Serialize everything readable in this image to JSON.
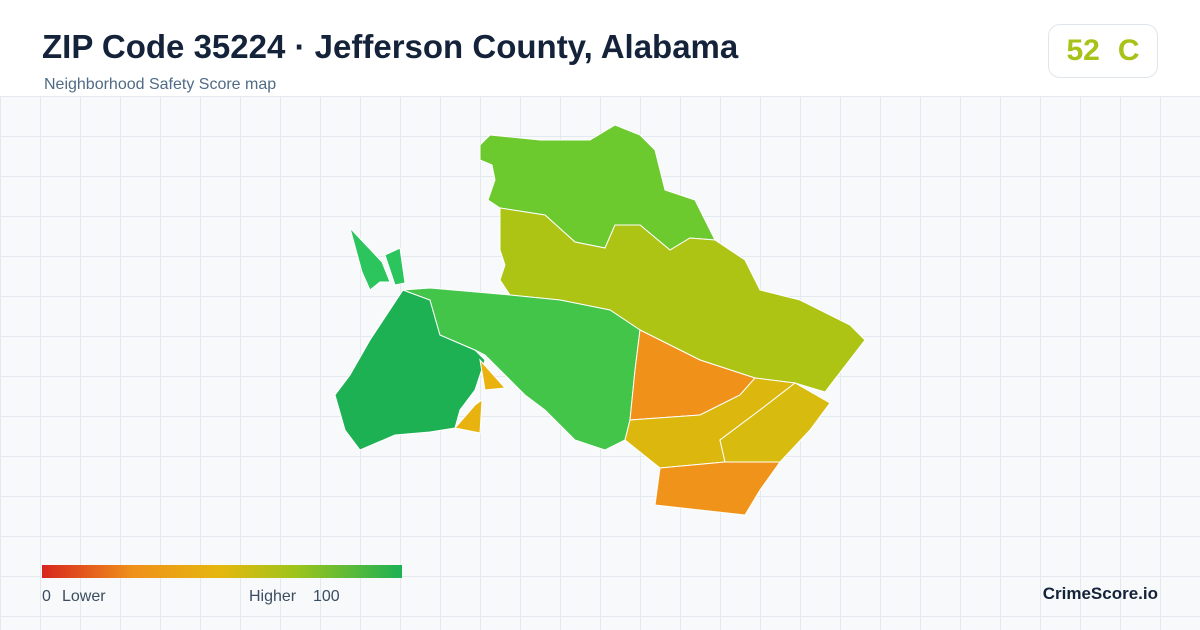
{
  "header": {
    "title": "ZIP Code 35224 · Jefferson County, Alabama",
    "subtitle": "Neighborhood Safety Score map"
  },
  "score": {
    "value": 52,
    "grade": "C"
  },
  "legend": {
    "min": 0,
    "min_label": "Lower",
    "max_label": "Higher",
    "max": 100
  },
  "brand": "CrimeScore.io"
}
